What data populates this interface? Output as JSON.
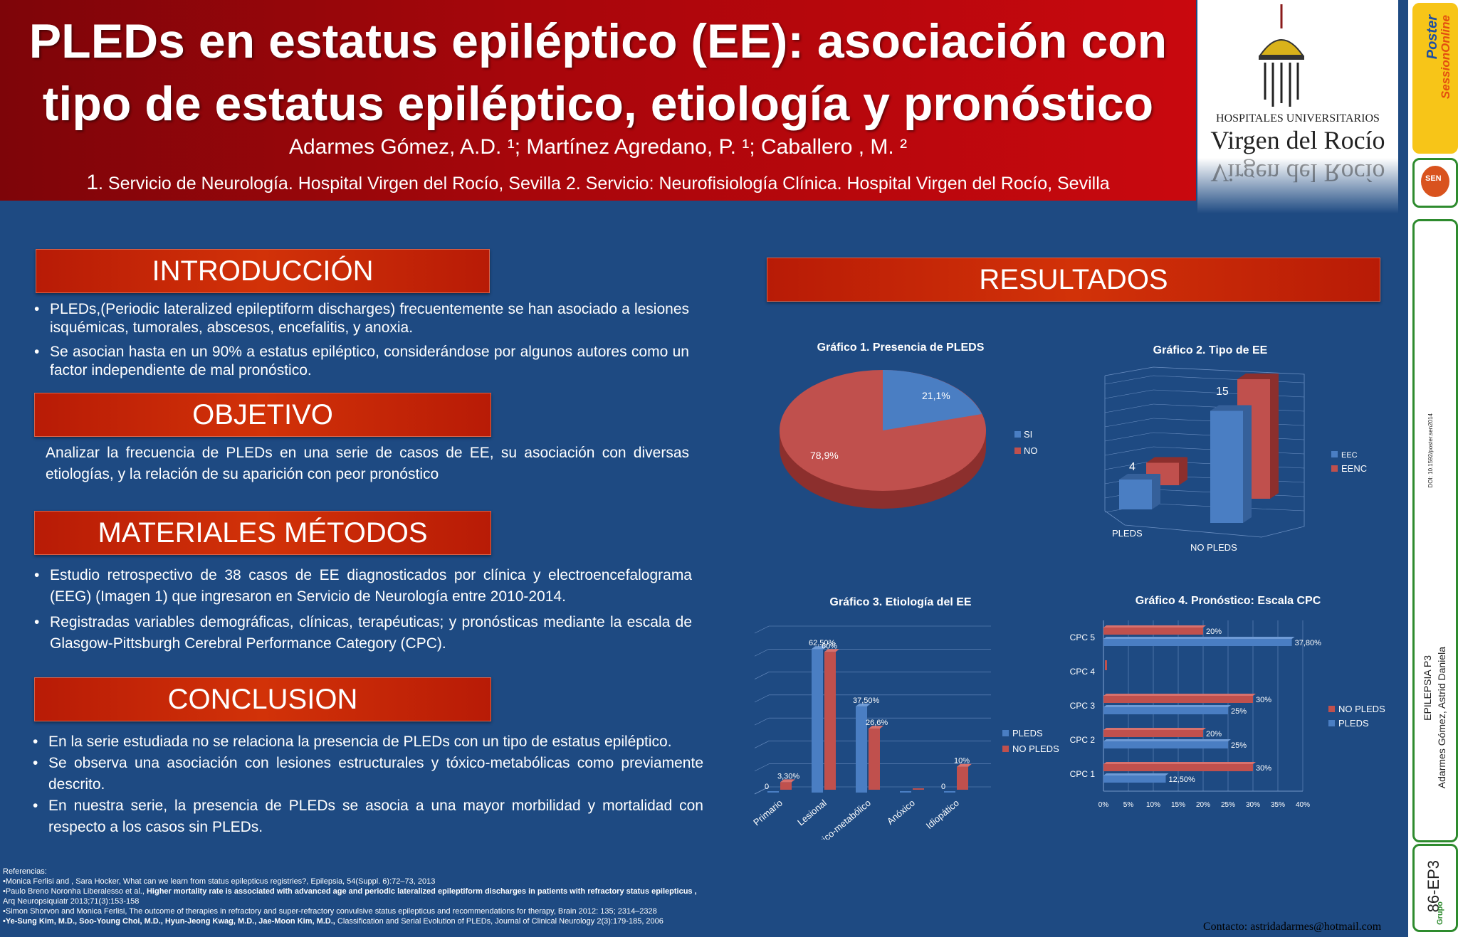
{
  "header": {
    "title_line1": "PLEDs en estatus epiléptico (EE): asociación con",
    "title_line2": "tipo de estatus epiléptico, etiología y pronóstico",
    "authors": "Adarmes Gómez, A.D. ¹; Martínez Agredano, P. ¹; Caballero , M. ²",
    "affiliation_num": "1",
    "affiliation": ". Servicio de Neurología. Hospital Virgen del Rocío, Sevilla 2. Servicio: Neurofisiología Clínica. Hospital Virgen del Rocío, Sevilla"
  },
  "logo": {
    "line1": "HOSPITALES UNIVERSITARIOS",
    "line2": "Virgen del Rocío"
  },
  "sidebar": {
    "brand_poster": "Poster",
    "brand_session": "SessionOnline",
    "brand_congress": "SEN",
    "doi": "DOI: 10.1592/poster.sen2014",
    "category": "EPILEPSIA P3",
    "author": "Adarmes Gómez, Astrid Daniela",
    "code": "86-EP3",
    "footer_brand": "Grupo"
  },
  "sections": {
    "intro_title": "INTRODUCCIÓN",
    "intro_bullets": [
      "PLEDs,(Periodic lateralized epileptiform discharges) frecuentemente se han asociado a lesiones isquémicas, tumorales, abscesos, encefalitis, y anoxia.",
      "Se asocian hasta en un 90% a estatus epiléptico, considerándose por algunos autores como un factor independiente de mal pronóstico."
    ],
    "objective_title": "OBJETIVO",
    "objective_text": "Analizar la frecuencia de PLEDs en una serie de casos de EE, su asociación con diversas etiologías, y la relación de su aparición con peor pronóstico",
    "methods_title": "MATERIALES  MÉTODOS",
    "methods_bullets": [
      "Estudio retrospectivo de 38 casos de EE diagnosticados por clínica y electroencefalograma (EEG) (Imagen 1) que ingresaron en Servicio de Neurología entre 2010-2014.",
      "Registradas variables demográficas, clínicas, terapéuticas; y pronósticas mediante la escala de Glasgow-Pittsburgh Cerebral Performance Category (CPC)."
    ],
    "conclusion_title": "CONCLUSION",
    "conclusion_bullets": [
      "En la serie estudiada no se relaciona la presencia de PLEDs con un tipo de estatus epiléptico.",
      "Se observa una asociación con lesiones estructurales y tóxico-metabólicas como previamente descrito.",
      "En nuestra serie, la presencia de PLEDs se asocia a una mayor morbilidad y mortalidad con respecto a los casos sin PLEDs."
    ],
    "results_title": "RESULTADOS"
  },
  "references": {
    "heading": "Referencias:",
    "r1": "•Monica Ferlisi and , Sara Hocker, What can we learn from status epilepticus registries?, Epilepsia, 54(Suppl. 6):72–73, 2013",
    "r2_a": "•Paulo Breno Noronha Liberalesso et al., ",
    "r2_b": "Higher mortality rate is associated with advanced age and periodic lateralized epileptiform discharges in patients with refractory status epilepticus ,",
    "r2_c": " Arq Neuropsiquiatr 2013;71(3):153-158",
    "r3": "•Simon Shorvon and Monica Ferlisi, The outcome of therapies in refractory and super-refractory convulsive status epilepticus and recommendations for therapy, Brain 2012: 135; 2314–2328",
    "r4_a": "•Ye-Sung Kim, M.D., Soo-Young Choi, M.D., Hyun-Jeong Kwag, M.D., Jae-Moon Kim, M.D.,",
    "r4_b": " Classification and Serial Evolution of PLEDs, Journal of Clinical Neurology 2(3):179-185, 2006"
  },
  "contact": "Contacto: astridadarmes@hotmail.com",
  "colors": {
    "blue": "#4a7ec3",
    "red": "#c0504d",
    "bg": "#1e4a82"
  },
  "chart_data": [
    {
      "type": "pie",
      "title": "Gráfico 1. Presencia de PLEDS",
      "categories": [
        "SI",
        "NO"
      ],
      "values": [
        21.1,
        78.9
      ],
      "labels": [
        "21,1%",
        "78,9%"
      ],
      "legend": "right"
    },
    {
      "type": "bar",
      "title": "Gráfico 2. Tipo de EE",
      "categories": [
        "PLEDS",
        "NO PLEDS"
      ],
      "series": [
        {
          "name": "EEC",
          "values": [
            4,
            15
          ]
        },
        {
          "name": "EENC",
          "values": [
            3,
            16
          ]
        }
      ],
      "data_labels": [
        "4",
        "15"
      ],
      "ylim": [
        0,
        18
      ],
      "legend": "right"
    },
    {
      "type": "bar",
      "title": "Gráfico 3. Etiología del EE",
      "categories": [
        "Primario",
        "Lesional",
        "Tóxico-metabólico",
        "Anóxico",
        "Idiopático"
      ],
      "series": [
        {
          "name": "PLEDS",
          "values": [
            0,
            0.625,
            0.375,
            0,
            0
          ],
          "labels": [
            "0",
            "62,50%",
            "37,50%",
            "",
            "0"
          ]
        },
        {
          "name": "NO PLEDS",
          "values": [
            0.033,
            0.6,
            0.266,
            0,
            0.1
          ],
          "labels": [
            "3,30%",
            "60%",
            "26,6%",
            "",
            "10%"
          ]
        }
      ],
      "ylim": [
        0,
        0.7
      ],
      "legend": "right"
    },
    {
      "type": "bar",
      "title": "Gráfico 4. Pronóstico: Escala CPC",
      "categories": [
        "CPC 1",
        "CPC 2",
        "CPC 3",
        "CPC 4",
        "CPC 5"
      ],
      "series": [
        {
          "name": "NO PLEDS",
          "values": [
            30,
            20,
            30,
            0,
            20
          ],
          "labels": [
            "30%",
            "20%",
            "30%",
            "",
            "20%"
          ]
        },
        {
          "name": "PLEDS",
          "values": [
            12.5,
            25,
            25,
            0,
            37.8
          ],
          "labels": [
            "12,50%",
            "25%",
            "25%",
            "",
            "37,80%"
          ]
        }
      ],
      "ticks": [
        "0%",
        "5%",
        "10%",
        "15%",
        "20%",
        "25%",
        "30%",
        "35%",
        "40%"
      ],
      "xlim": [
        0,
        40
      ],
      "orientation": "horizontal",
      "legend": "right"
    }
  ]
}
